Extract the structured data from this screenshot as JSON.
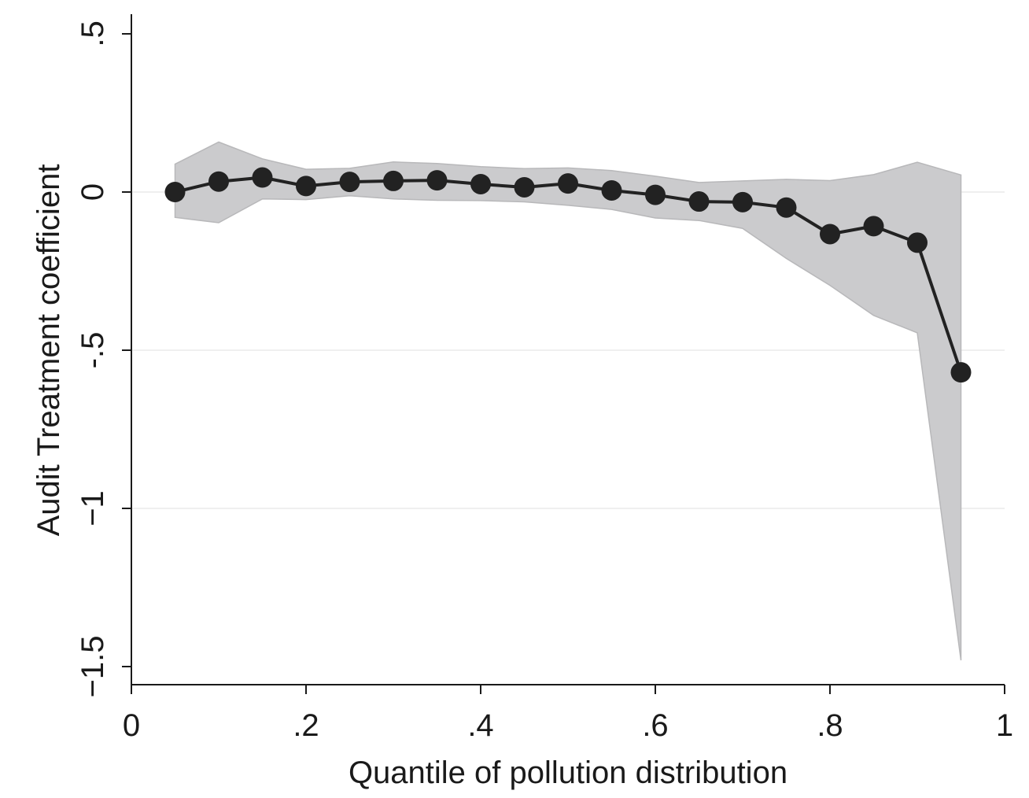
{
  "chart_data": {
    "type": "line",
    "xlabel": "Quantile of pollution distribution",
    "ylabel": "Audit Treatment coefficient",
    "xlim": [
      0,
      1
    ],
    "ylim": [
      -1.5,
      0.5
    ],
    "x_ticks": [
      {
        "value": 0,
        "label": "0"
      },
      {
        "value": 0.2,
        "label": ".2"
      },
      {
        "value": 0.4,
        "label": ".4"
      },
      {
        "value": 0.6,
        "label": ".6"
      },
      {
        "value": 0.8,
        "label": ".8"
      },
      {
        "value": 1,
        "label": "1"
      }
    ],
    "y_ticks": [
      {
        "value": 0.5,
        "label": ".5"
      },
      {
        "value": 0,
        "label": "0"
      },
      {
        "value": -0.5,
        "label": "-.5"
      },
      {
        "value": -1,
        "label": "−1"
      },
      {
        "value": -1.5,
        "label": "−1.5"
      }
    ],
    "grid": true,
    "legend": "none",
    "x": [
      0.05,
      0.1,
      0.15,
      0.2,
      0.25,
      0.3,
      0.35,
      0.4,
      0.45,
      0.5,
      0.55,
      0.6,
      0.65,
      0.7,
      0.75,
      0.8,
      0.85,
      0.9,
      0.95
    ],
    "series": [
      {
        "values": [
          0.0,
          0.033,
          0.046,
          0.019,
          0.032,
          0.035,
          0.037,
          0.025,
          0.015,
          0.027,
          0.005,
          -0.009,
          -0.03,
          -0.032,
          -0.049,
          -0.133,
          -0.108,
          -0.16,
          -0.57
        ],
        "color": "#222222",
        "marker": "circle"
      }
    ],
    "ci_band": {
      "upper": [
        0.088,
        0.158,
        0.105,
        0.072,
        0.075,
        0.095,
        0.09,
        0.08,
        0.074,
        0.076,
        0.068,
        0.05,
        0.03,
        0.035,
        0.04,
        0.036,
        0.055,
        0.094,
        0.054
      ],
      "lower": [
        -0.08,
        -0.097,
        -0.022,
        -0.024,
        -0.012,
        -0.022,
        -0.026,
        -0.027,
        -0.031,
        -0.042,
        -0.055,
        -0.082,
        -0.09,
        -0.115,
        -0.21,
        -0.295,
        -0.39,
        -0.445,
        -1.48
      ],
      "color": "#cbcbcd",
      "edge_color": "#b8b8ba"
    }
  }
}
